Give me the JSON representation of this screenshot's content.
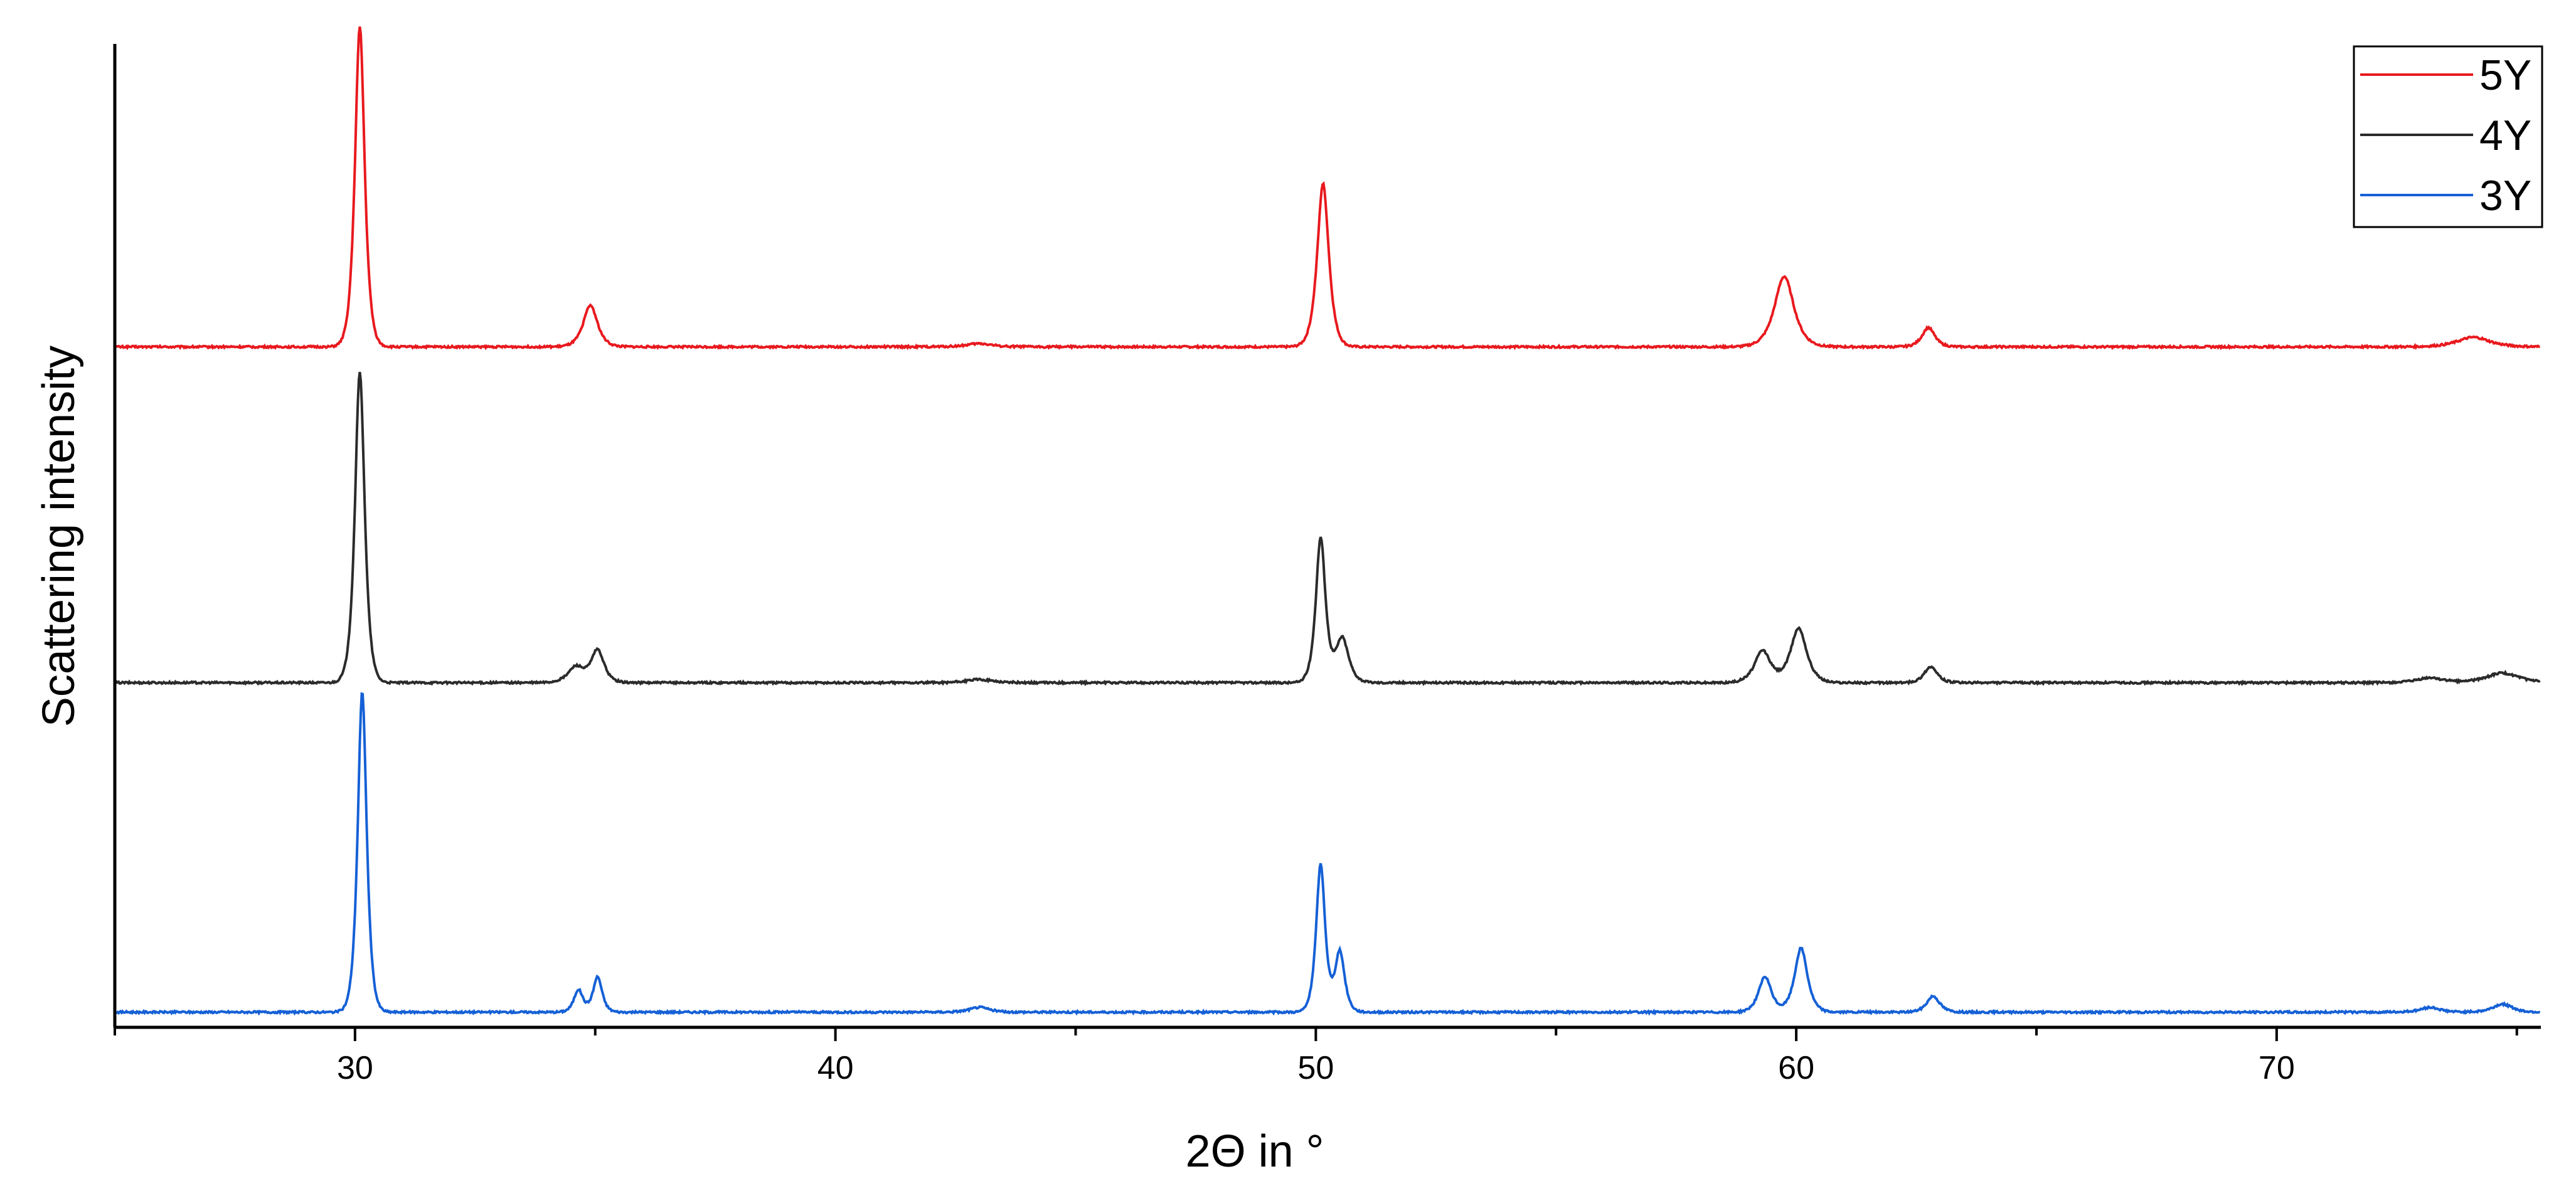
{
  "chart_data": {
    "type": "line",
    "title": "",
    "xlabel": "2Θ in °",
    "ylabel": "Scattering intensity",
    "xlim": [
      25,
      75.5
    ],
    "xticks": [
      30,
      40,
      50,
      60,
      70
    ],
    "xtick_labels": [
      "30",
      "40",
      "50",
      "60",
      "70"
    ],
    "grid": false,
    "legend_position": "top-right",
    "yaxis": "stacked, offset, no tick labels",
    "series": [
      {
        "name": "5Y",
        "color": "#e8191e",
        "baseline": 2.1,
        "peaks": [
          [
            30.1,
            1.0,
            0.15
          ],
          [
            34.9,
            0.13,
            0.22
          ],
          [
            43.0,
            0.01,
            0.4
          ],
          [
            50.15,
            0.51,
            0.18
          ],
          [
            59.75,
            0.22,
            0.3
          ],
          [
            62.75,
            0.06,
            0.2
          ],
          [
            74.1,
            0.03,
            0.5
          ]
        ]
      },
      {
        "name": "4Y",
        "color": "#2b2b2b",
        "baseline": 1.05,
        "peaks": [
          [
            30.1,
            0.97,
            0.15
          ],
          [
            34.6,
            0.05,
            0.25
          ],
          [
            35.05,
            0.1,
            0.2
          ],
          [
            43.0,
            0.01,
            0.4
          ],
          [
            50.1,
            0.45,
            0.15
          ],
          [
            50.55,
            0.14,
            0.2
          ],
          [
            59.3,
            0.1,
            0.25
          ],
          [
            60.05,
            0.17,
            0.25
          ],
          [
            62.8,
            0.05,
            0.2
          ],
          [
            73.2,
            0.015,
            0.4
          ],
          [
            74.7,
            0.03,
            0.5
          ]
        ]
      },
      {
        "name": "3Y",
        "color": "#1560d6",
        "baseline": 0.02,
        "peaks": [
          [
            30.15,
            1.0,
            0.14
          ],
          [
            34.65,
            0.07,
            0.14
          ],
          [
            35.05,
            0.11,
            0.14
          ],
          [
            43.0,
            0.015,
            0.3
          ],
          [
            50.1,
            0.46,
            0.14
          ],
          [
            50.5,
            0.19,
            0.15
          ],
          [
            59.35,
            0.11,
            0.2
          ],
          [
            60.1,
            0.2,
            0.2
          ],
          [
            62.85,
            0.05,
            0.2
          ],
          [
            73.2,
            0.015,
            0.3
          ],
          [
            74.7,
            0.025,
            0.3
          ]
        ]
      }
    ]
  }
}
